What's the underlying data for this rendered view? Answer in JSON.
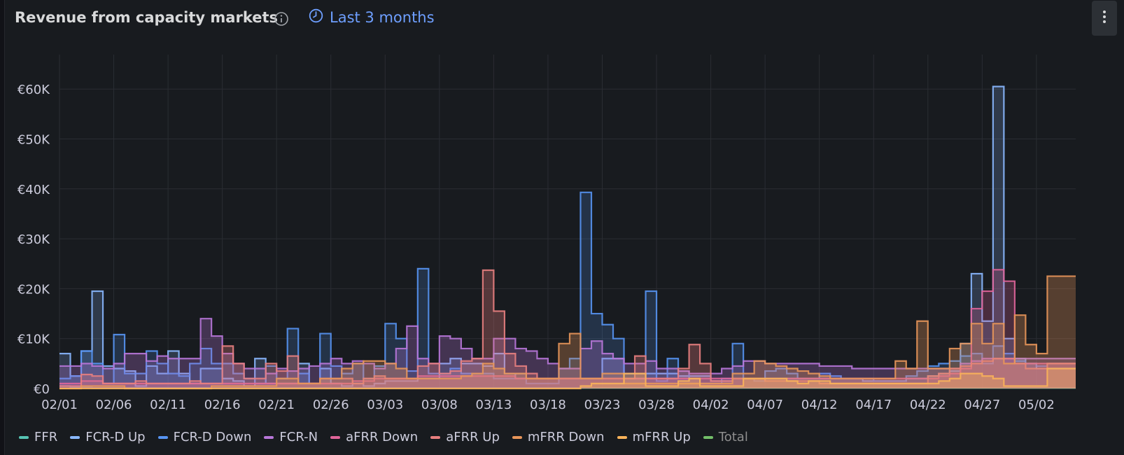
{
  "panel": {
    "title": "Revenue from capacity markets",
    "time_range": "Last 3 months",
    "icons": {
      "info": "info-icon",
      "clock": "clock-icon",
      "menu": "vertical-dots-icon"
    }
  },
  "chart_data": {
    "type": "area",
    "title": "Revenue from capacity markets",
    "xlabel": "",
    "ylabel": "",
    "x_ticks": [
      "02/01",
      "02/06",
      "02/11",
      "02/16",
      "02/21",
      "02/26",
      "03/03",
      "03/08",
      "03/13",
      "03/18",
      "03/23",
      "03/28",
      "04/02",
      "04/07",
      "04/12",
      "04/17",
      "04/22",
      "04/27",
      "05/02"
    ],
    "y_ticks": [
      "€0",
      "€10K",
      "€20K",
      "€30K",
      "€40K",
      "€50K",
      "€60K"
    ],
    "ylim": [
      0,
      65000
    ],
    "x_domain_days": [
      0,
      94
    ],
    "grid": true,
    "legend_position": "bottom-left",
    "series": [
      {
        "name": "FFR",
        "color": "#56c4b3",
        "fill_opacity": 0.25,
        "values": [
          500,
          300,
          200,
          100,
          100,
          100,
          100,
          100,
          100,
          100,
          100,
          100,
          100,
          100,
          100,
          100,
          100,
          100,
          100,
          100,
          100,
          100,
          100,
          100,
          100,
          100,
          100,
          100,
          100,
          100,
          100,
          100,
          100,
          100,
          100,
          100,
          100,
          100,
          100,
          100,
          100,
          100,
          100,
          100,
          100,
          100,
          100,
          100,
          100,
          100,
          100,
          100,
          100,
          100,
          100,
          100,
          100,
          100,
          100,
          100,
          100,
          100,
          100,
          100,
          100,
          100,
          100,
          100,
          100,
          100,
          100,
          100,
          100,
          100,
          100,
          100,
          100,
          100,
          100,
          100,
          100,
          100,
          100,
          100,
          100,
          100,
          100,
          100,
          100,
          100,
          100,
          100,
          100,
          100
        ]
      },
      {
        "name": "FCR-D Up",
        "color": "#8ab8ff",
        "fill_opacity": 0.2,
        "values": [
          7000,
          2500,
          7500,
          19500,
          4500,
          4000,
          3500,
          500,
          4500,
          3000,
          7500,
          3000,
          1000,
          4000,
          4000,
          2000,
          1500,
          500,
          6000,
          1000,
          1000,
          1000,
          5000,
          1000,
          4000,
          1000,
          500,
          1000,
          500,
          1000,
          1500,
          1500,
          1500,
          2000,
          2000,
          5000,
          6000,
          5000,
          5000,
          4500,
          7000,
          3000,
          2000,
          2000,
          2000,
          2000,
          2000,
          2000,
          2000,
          2000,
          6000,
          6000,
          3000,
          3000,
          3000,
          3000,
          3000,
          2500,
          2500,
          2500,
          1500,
          1500,
          2000,
          2000,
          2000,
          2000,
          2000,
          2000,
          2000,
          2000,
          2000,
          2000,
          2000,
          2000,
          1500,
          1500,
          1500,
          1500,
          2000,
          2000,
          2500,
          3000,
          3500,
          9000,
          23000,
          13500,
          60500,
          10000,
          6000,
          5000,
          4000,
          4000,
          4000,
          4000
        ]
      },
      {
        "name": "FCR-D Down",
        "color": "#5794f2",
        "fill_opacity": 0.2,
        "values": [
          2000,
          2500,
          7500,
          5000,
          1000,
          10800,
          3000,
          3000,
          7500,
          5000,
          3000,
          2500,
          5000,
          8000,
          5000,
          5000,
          3000,
          2000,
          1000,
          4500,
          2000,
          12000,
          3000,
          1000,
          11000,
          4500,
          3000,
          5000,
          2000,
          4500,
          13000,
          10000,
          3500,
          24000,
          3000,
          3000,
          4000,
          3000,
          3000,
          3000,
          2000,
          2000,
          3000,
          1000,
          1000,
          1000,
          4000,
          6000,
          39300,
          15000,
          12800,
          10000,
          2000,
          2000,
          19500,
          1500,
          6000,
          3500,
          2000,
          1000,
          1000,
          2000,
          9000,
          2000,
          1500,
          3500,
          4000,
          3000,
          2000,
          2000,
          3000,
          2500,
          2000,
          2000,
          2000,
          1500,
          1500,
          1500,
          2500,
          3500,
          4500,
          5000,
          5500,
          6500,
          7000,
          5000,
          8500,
          7000,
          5500,
          5000,
          4500,
          5000,
          5000,
          5000
        ]
      },
      {
        "name": "FCR-N",
        "color": "#b877d9",
        "fill_opacity": 0.28,
        "values": [
          4500,
          4500,
          5000,
          4500,
          4000,
          5000,
          7000,
          7000,
          5500,
          6500,
          6000,
          6000,
          6000,
          14000,
          10500,
          7000,
          5000,
          4000,
          4000,
          3000,
          4000,
          3500,
          4000,
          4500,
          5000,
          6000,
          5000,
          5500,
          5000,
          4000,
          5000,
          8000,
          12500,
          6000,
          5000,
          10500,
          10000,
          8000,
          6000,
          6000,
          10000,
          10000,
          8000,
          7500,
          6000,
          5000,
          4000,
          4000,
          8000,
          9500,
          7000,
          6000,
          5000,
          5000,
          5500,
          4000,
          4000,
          3500,
          3000,
          3000,
          3000,
          4000,
          4500,
          5500,
          5500,
          5000,
          5000,
          5000,
          5000,
          5000,
          4500,
          4500,
          4500,
          4000,
          4000,
          4000,
          4000,
          4000,
          4000,
          4000,
          4000,
          4000,
          4000,
          5000,
          5500,
          6000,
          6000,
          6000,
          6000,
          6000,
          6000,
          6000,
          6000,
          6000
        ]
      },
      {
        "name": "aFRR Down",
        "color": "#e0659a",
        "fill_opacity": 0.25,
        "values": [
          1000,
          1000,
          1500,
          1500,
          1000,
          1000,
          1000,
          1000,
          1000,
          1000,
          1000,
          1000,
          1000,
          1000,
          1000,
          1000,
          1000,
          1000,
          1000,
          1000,
          1000,
          1000,
          1000,
          1000,
          1000,
          1000,
          1000,
          1500,
          1500,
          2000,
          2000,
          2000,
          2000,
          2500,
          2500,
          2500,
          2500,
          2500,
          2500,
          2500,
          2500,
          2500,
          2000,
          2000,
          2000,
          2000,
          2000,
          2000,
          2000,
          2000,
          2000,
          2000,
          2000,
          2000,
          2000,
          2000,
          2000,
          2000,
          2000,
          2000,
          2000,
          2000,
          2000,
          2000,
          2000,
          2000,
          2000,
          2000,
          2000,
          2000,
          2000,
          2000,
          2000,
          2000,
          2000,
          2000,
          2000,
          2000,
          2000,
          2000,
          2000,
          2500,
          3000,
          4000,
          16000,
          19500,
          23800,
          21500,
          5000,
          5000,
          5000,
          5000,
          5000,
          5000
        ]
      },
      {
        "name": "aFRR Up",
        "color": "#e87f7f",
        "fill_opacity": 0.3,
        "values": [
          500,
          500,
          2800,
          2500,
          1000,
          1000,
          1000,
          1500,
          1000,
          1000,
          1000,
          1000,
          1500,
          1000,
          1000,
          8500,
          5000,
          2000,
          2000,
          5000,
          3500,
          6500,
          1000,
          1000,
          2000,
          2000,
          2000,
          1000,
          2000,
          2500,
          2000,
          2000,
          2000,
          4500,
          5000,
          3000,
          3500,
          5500,
          6000,
          23700,
          15500,
          7000,
          4500,
          3000,
          2000,
          2000,
          2000,
          2000,
          2000,
          2000,
          2000,
          2000,
          2000,
          6500,
          2000,
          2000,
          2000,
          4000,
          8800,
          5000,
          1500,
          1500,
          2000,
          2000,
          2000,
          1500,
          1500,
          1500,
          1500,
          1500,
          1000,
          1000,
          1000,
          1000,
          1000,
          1000,
          1000,
          1000,
          1000,
          1000,
          2500,
          3000,
          4000,
          4500,
          5000,
          5500,
          6000,
          6000,
          5000,
          4000,
          4000,
          5000,
          5000,
          5000
        ]
      },
      {
        "name": "mFRR Down",
        "color": "#e8965a",
        "fill_opacity": 0.3,
        "values": [
          0,
          0,
          500,
          500,
          500,
          500,
          0,
          0,
          0,
          0,
          0,
          0,
          0,
          0,
          500,
          500,
          500,
          500,
          500,
          500,
          2000,
          2000,
          1000,
          1000,
          2000,
          2000,
          4000,
          5000,
          5500,
          5500,
          5000,
          4000,
          2000,
          2000,
          2000,
          2000,
          2000,
          2500,
          3000,
          5000,
          4000,
          3000,
          3000,
          2000,
          2000,
          2000,
          9000,
          11000,
          2000,
          2000,
          3000,
          3000,
          1000,
          1000,
          1000,
          1000,
          1000,
          1000,
          1000,
          1000,
          1000,
          1000,
          3000,
          3000,
          5500,
          5000,
          4500,
          4000,
          3500,
          3000,
          2500,
          2000,
          2000,
          2000,
          2000,
          2000,
          2000,
          5500,
          4000,
          13500,
          4000,
          4000,
          8000,
          9000,
          13000,
          9000,
          13000,
          5000,
          14700,
          8800,
          7000,
          22500,
          22500,
          22500
        ]
      },
      {
        "name": "mFRR Up",
        "color": "#fab35a",
        "fill_opacity": 0.35,
        "values": [
          0,
          0,
          0,
          0,
          0,
          0,
          0,
          0,
          0,
          0,
          0,
          0,
          0,
          0,
          0,
          0,
          0,
          0,
          0,
          0,
          0,
          0,
          0,
          0,
          0,
          0,
          0,
          0,
          0,
          0,
          0,
          0,
          0,
          0,
          0,
          0,
          0,
          0,
          0,
          0,
          0,
          0,
          0,
          0,
          0,
          0,
          0,
          0,
          500,
          1000,
          1000,
          1000,
          3000,
          3000,
          500,
          500,
          500,
          1500,
          2000,
          500,
          500,
          500,
          500,
          2000,
          2000,
          2000,
          2000,
          1500,
          1000,
          1500,
          1500,
          1000,
          1000,
          1000,
          1000,
          1000,
          1000,
          1000,
          1000,
          1000,
          1000,
          1500,
          2000,
          3000,
          3000,
          2500,
          2000,
          500,
          500,
          500,
          500,
          4000,
          4000,
          4000
        ]
      },
      {
        "name": "Total",
        "color": "#73bf69",
        "fill_opacity": 0,
        "hidden": true,
        "values": []
      }
    ]
  }
}
